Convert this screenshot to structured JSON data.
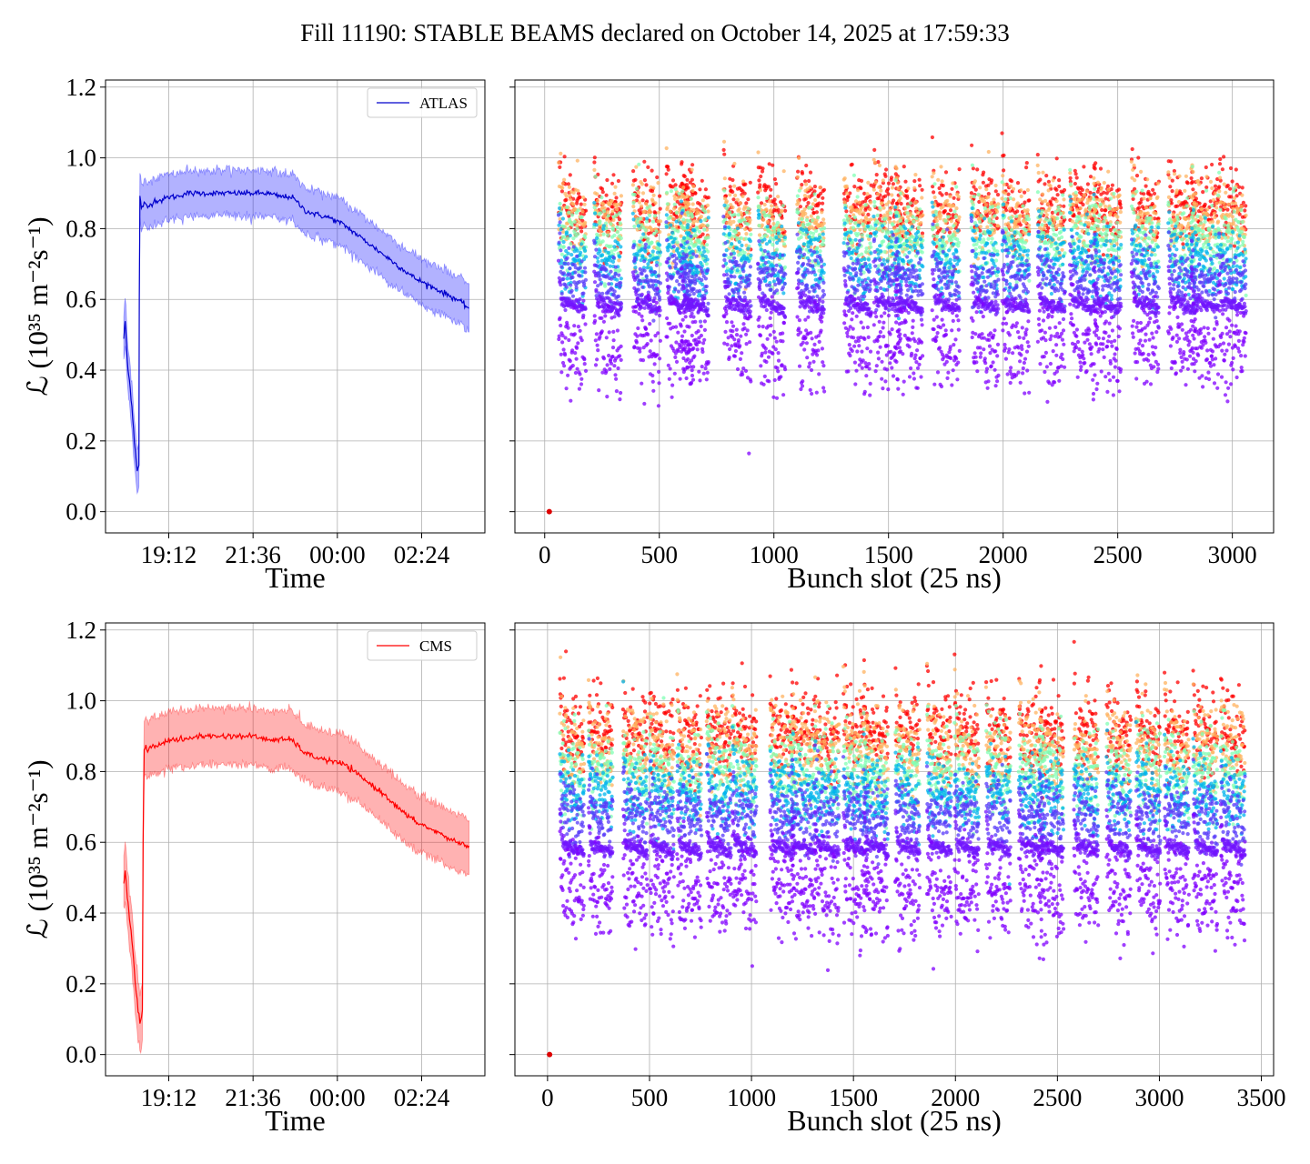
{
  "figure": {
    "title": "Fill 11190: STABLE BEAMS declared on October 14, 2025 at 17:59:33"
  },
  "chart_data": [
    {
      "type": "line",
      "panel": "top-left",
      "xlabel": "Time",
      "ylabel": "ℒ (10³⁵ m⁻²s⁻¹)",
      "x_tick_labels": [
        "19:12",
        "21:36",
        "00:00",
        "02:24"
      ],
      "x_tick_hours": [
        19.2,
        21.6,
        24.0,
        26.4
      ],
      "xlim_hours": [
        17.4,
        28.2
      ],
      "ylim": [
        -0.06,
        1.22
      ],
      "y_ticks": [
        0.0,
        0.2,
        0.4,
        0.6,
        0.8,
        1.0,
        1.2
      ],
      "y_tick_labels": [
        "0.0",
        "0.2",
        "0.4",
        "0.6",
        "0.8",
        "1.0",
        "1.2"
      ],
      "grid": true,
      "legend_position": "top-right",
      "series": [
        {
          "name": "ATLAS",
          "color": "#0000cc",
          "band_color": "#0000ff",
          "band_half_width": 0.065,
          "x_hours": [
            17.92,
            17.96,
            18.0,
            18.04,
            18.08,
            18.15,
            18.22,
            18.3,
            18.35,
            18.36,
            18.38,
            18.42,
            18.5,
            18.6,
            18.7,
            18.8,
            19.0,
            19.2,
            19.4,
            19.7,
            20.0,
            20.4,
            20.8,
            21.2,
            21.6,
            22.0,
            22.4,
            22.7,
            22.9,
            23.1,
            23.4,
            23.8,
            24.2,
            24.6,
            25.0,
            25.4,
            25.8,
            26.2,
            26.6,
            27.0,
            27.4,
            27.75
          ],
          "y": [
            0.49,
            0.54,
            0.46,
            0.4,
            0.37,
            0.3,
            0.2,
            0.12,
            0.13,
            0.6,
            0.89,
            0.86,
            0.87,
            0.86,
            0.87,
            0.88,
            0.88,
            0.89,
            0.89,
            0.9,
            0.9,
            0.9,
            0.9,
            0.9,
            0.9,
            0.9,
            0.89,
            0.89,
            0.87,
            0.85,
            0.84,
            0.83,
            0.81,
            0.78,
            0.75,
            0.72,
            0.69,
            0.66,
            0.64,
            0.62,
            0.6,
            0.575
          ]
        }
      ]
    },
    {
      "type": "scatter",
      "panel": "top-right",
      "xlabel": "Bunch slot (25 ns)",
      "xlim": [
        -130,
        3180
      ],
      "x_ticks": [
        0,
        500,
        1000,
        1500,
        2000,
        2500,
        3000
      ],
      "x_tick_labels": [
        "0",
        "500",
        "1000",
        "1500",
        "2000",
        "2500",
        "3000"
      ],
      "ylim": [
        -0.06,
        1.22
      ],
      "y_ticks": [
        0.0,
        0.2,
        0.4,
        0.6,
        0.8,
        1.0,
        1.2
      ],
      "grid": true,
      "color_scale": [
        "#8000ff",
        "#00b4ec",
        "#80ffb4",
        "#ffb360",
        "#ff0000"
      ],
      "pilot_bunch": {
        "x": 20,
        "y": 0.0
      },
      "train_starts": [
        60,
        215,
        385,
        530,
        595,
        780,
        930,
        1100,
        1305,
        1435,
        1530,
        1690,
        1860,
        1995,
        2150,
        2290,
        2395,
        2560,
        2720,
        2820,
        2940
      ],
      "train_length": 120,
      "layers": [
        {
          "time_fraction": 0.0,
          "mean": 0.87,
          "spread": 0.055
        },
        {
          "time_fraction": 0.25,
          "mean": 0.84,
          "spread": 0.055
        },
        {
          "time_fraction": 0.5,
          "mean": 0.78,
          "spread": 0.055
        },
        {
          "time_fraction": 0.75,
          "mean": 0.72,
          "spread": 0.05
        },
        {
          "time_fraction": 0.92,
          "mean": 0.67,
          "spread": 0.04
        },
        {
          "time_fraction": 0.97,
          "mean": 0.6,
          "spread": 0.01
        },
        {
          "time_fraction": 1.0,
          "mean": 0.48,
          "spread": 0.06
        }
      ]
    },
    {
      "type": "line",
      "panel": "bottom-left",
      "xlabel": "Time",
      "ylabel": "ℒ (10³⁵ m⁻²s⁻¹)",
      "x_tick_labels": [
        "19:12",
        "21:36",
        "00:00",
        "02:24"
      ],
      "x_tick_hours": [
        19.2,
        21.6,
        24.0,
        26.4
      ],
      "xlim_hours": [
        17.4,
        28.2
      ],
      "ylim": [
        -0.06,
        1.22
      ],
      "y_ticks": [
        0.0,
        0.2,
        0.4,
        0.6,
        0.8,
        1.0,
        1.2
      ],
      "y_tick_labels": [
        "0.0",
        "0.2",
        "0.4",
        "0.6",
        "0.8",
        "1.0",
        "1.2"
      ],
      "grid": true,
      "legend_position": "top-right",
      "series": [
        {
          "name": "CMS",
          "color": "#ff0000",
          "band_color": "#ff0000",
          "band_half_width": 0.08,
          "x_hours": [
            17.92,
            17.96,
            18.0,
            18.04,
            18.08,
            18.15,
            18.22,
            18.3,
            18.38,
            18.45,
            18.47,
            18.5,
            18.55,
            18.6,
            18.7,
            18.8,
            19.0,
            19.2,
            19.4,
            19.7,
            20.0,
            20.4,
            20.8,
            21.2,
            21.6,
            22.0,
            22.4,
            22.7,
            22.9,
            23.1,
            23.4,
            23.8,
            24.2,
            24.6,
            25.0,
            25.4,
            25.8,
            26.2,
            26.6,
            27.0,
            27.4,
            27.75
          ],
          "y": [
            0.48,
            0.52,
            0.47,
            0.43,
            0.38,
            0.33,
            0.23,
            0.15,
            0.09,
            0.12,
            0.6,
            0.86,
            0.87,
            0.86,
            0.87,
            0.87,
            0.88,
            0.89,
            0.89,
            0.89,
            0.9,
            0.9,
            0.9,
            0.9,
            0.9,
            0.89,
            0.89,
            0.89,
            0.87,
            0.85,
            0.84,
            0.83,
            0.82,
            0.79,
            0.76,
            0.73,
            0.69,
            0.66,
            0.64,
            0.62,
            0.6,
            0.59
          ]
        }
      ]
    },
    {
      "type": "scatter",
      "panel": "bottom-right",
      "xlabel": "Bunch slot (25 ns)",
      "xlim": [
        -160,
        3560
      ],
      "x_ticks": [
        0,
        500,
        1000,
        1500,
        2000,
        2500,
        3000,
        3500
      ],
      "x_tick_labels": [
        "0",
        "500",
        "1000",
        "1500",
        "2000",
        "2500",
        "3000",
        "3500"
      ],
      "ylim": [
        -0.06,
        1.22
      ],
      "y_ticks": [
        0.0,
        0.2,
        0.4,
        0.6,
        0.8,
        1.0,
        1.2
      ],
      "grid": true,
      "color_scale": [
        "#8000ff",
        "#00b4ec",
        "#80ffb4",
        "#ffb360",
        "#ff0000"
      ],
      "pilot_bunch": {
        "x": 10,
        "y": 0.0
      },
      "train_starts": [
        60,
        200,
        370,
        500,
        635,
        780,
        905,
        1090,
        1195,
        1310,
        1450,
        1550,
        1705,
        1860,
        1995,
        2150,
        2310,
        2410,
        2580,
        2740,
        2885,
        3025,
        3165,
        3300
      ],
      "train_length": 120,
      "layers": [
        {
          "time_fraction": 0.0,
          "mean": 0.92,
          "spread": 0.06
        },
        {
          "time_fraction": 0.25,
          "mean": 0.88,
          "spread": 0.06
        },
        {
          "time_fraction": 0.5,
          "mean": 0.81,
          "spread": 0.06
        },
        {
          "time_fraction": 0.75,
          "mean": 0.75,
          "spread": 0.05
        },
        {
          "time_fraction": 0.92,
          "mean": 0.69,
          "spread": 0.045
        },
        {
          "time_fraction": 0.97,
          "mean": 0.6,
          "spread": 0.01
        },
        {
          "time_fraction": 1.0,
          "mean": 0.47,
          "spread": 0.065
        }
      ]
    }
  ]
}
